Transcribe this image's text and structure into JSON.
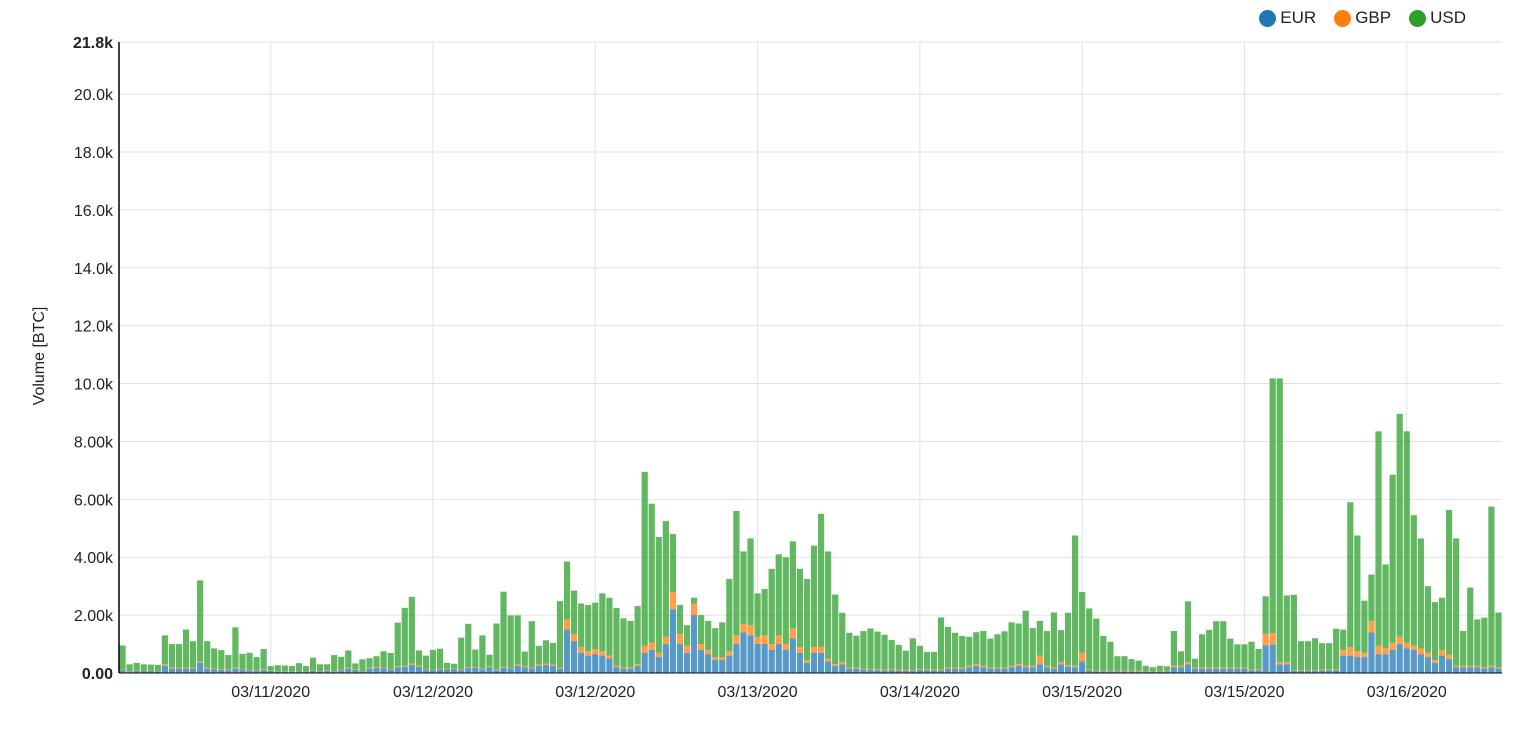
{
  "chart_data": {
    "type": "bar",
    "stacked": true,
    "ylabel": "Volume [BTC]",
    "ylim": [
      0,
      21800
    ],
    "y_ticks": [
      {
        "value": 0,
        "label": "0.00"
      },
      {
        "value": 2000,
        "label": "2.00k"
      },
      {
        "value": 4000,
        "label": "4.00k"
      },
      {
        "value": 6000,
        "label": "6.00k"
      },
      {
        "value": 8000,
        "label": "8.00k"
      },
      {
        "value": 10000,
        "label": "10.0k"
      },
      {
        "value": 12000,
        "label": "12.0k"
      },
      {
        "value": 14000,
        "label": "14.0k"
      },
      {
        "value": 16000,
        "label": "16.0k"
      },
      {
        "value": 18000,
        "label": "18.0k"
      },
      {
        "value": 20000,
        "label": "20.0k"
      },
      {
        "value": 21800,
        "label": "21.8k"
      }
    ],
    "x_ticks": [
      {
        "index": 21,
        "label": "03/11/2020"
      },
      {
        "index": 44,
        "label": "03/12/2020"
      },
      {
        "index": 67,
        "label": "03/12/2020"
      },
      {
        "index": 90,
        "label": "03/13/2020"
      },
      {
        "index": 113,
        "label": "03/14/2020"
      },
      {
        "index": 136,
        "label": "03/15/2020"
      },
      {
        "index": 159,
        "label": "03/15/2020"
      },
      {
        "index": 182,
        "label": "03/16/2020"
      }
    ],
    "grid": true,
    "legend_position": "top-right",
    "series": [
      {
        "name": "EUR",
        "color": "#1f77b4",
        "values": [
          100,
          60,
          80,
          90,
          80,
          60,
          250,
          150,
          150,
          150,
          160,
          350,
          150,
          130,
          110,
          90,
          150,
          120,
          90,
          80,
          110,
          70,
          60,
          50,
          50,
          60,
          50,
          70,
          60,
          80,
          60,
          90,
          150,
          110,
          60,
          150,
          180,
          160,
          120,
          200,
          210,
          280,
          220,
          120,
          100,
          120,
          130,
          140,
          100,
          170,
          180,
          130,
          200,
          90,
          180,
          160,
          250,
          200,
          160,
          250,
          280,
          250,
          150,
          1500,
          1100,
          700,
          600,
          650,
          600,
          500,
          200,
          150,
          160,
          250,
          700,
          800,
          550,
          1000,
          2200,
          1000,
          700,
          2000,
          800,
          650,
          450,
          450,
          600,
          1000,
          1400,
          1300,
          1000,
          1000,
          800,
          1000,
          800,
          1200,
          700,
          350,
          700,
          700,
          400,
          250,
          300,
          150,
          150,
          120,
          110,
          100,
          90,
          110,
          90,
          90,
          80,
          110,
          100,
          100,
          90,
          150,
          150,
          140,
          200,
          250,
          200,
          150,
          150,
          150,
          200,
          250,
          200,
          200,
          300,
          200,
          150,
          300,
          220,
          200,
          400,
          100,
          60,
          60,
          60,
          60,
          60,
          60,
          60,
          40,
          40,
          40,
          60,
          200,
          200,
          300,
          150,
          150,
          150,
          150,
          150,
          150,
          150,
          150,
          100,
          100,
          950,
          980,
          300,
          300,
          80,
          80,
          80,
          80,
          100,
          100,
          100,
          600,
          600,
          550,
          550,
          1400,
          650,
          650,
          800,
          1000,
          850,
          800,
          650,
          550,
          350,
          600,
          480,
          200,
          200,
          200,
          200,
          160,
          200,
          150
        ]
      },
      {
        "name": "GBP",
        "color": "#ff7f0e",
        "values": [
          20,
          10,
          10,
          10,
          10,
          10,
          50,
          30,
          30,
          30,
          30,
          50,
          30,
          20,
          20,
          20,
          30,
          20,
          20,
          20,
          20,
          20,
          10,
          10,
          10,
          10,
          10,
          10,
          10,
          20,
          10,
          20,
          30,
          20,
          10,
          30,
          30,
          30,
          20,
          40,
          40,
          50,
          40,
          20,
          20,
          20,
          20,
          20,
          20,
          30,
          30,
          20,
          30,
          20,
          30,
          30,
          40,
          40,
          30,
          40,
          50,
          40,
          30,
          350,
          250,
          200,
          150,
          180,
          150,
          100,
          50,
          40,
          40,
          60,
          250,
          250,
          150,
          250,
          600,
          350,
          250,
          400,
          200,
          150,
          100,
          100,
          150,
          300,
          300,
          350,
          250,
          300,
          200,
          300,
          200,
          350,
          200,
          100,
          200,
          200,
          100,
          60,
          80,
          40,
          40,
          30,
          30,
          30,
          30,
          30,
          30,
          30,
          20,
          30,
          30,
          30,
          30,
          40,
          40,
          40,
          50,
          60,
          50,
          40,
          40,
          40,
          50,
          60,
          50,
          50,
          300,
          50,
          40,
          80,
          60,
          50,
          300,
          30,
          20,
          20,
          20,
          20,
          20,
          20,
          20,
          10,
          10,
          10,
          20,
          50,
          50,
          80,
          40,
          40,
          40,
          40,
          40,
          40,
          40,
          40,
          30,
          30,
          400,
          400,
          80,
          80,
          20,
          20,
          20,
          20,
          30,
          30,
          30,
          200,
          300,
          200,
          150,
          400,
          300,
          200,
          250,
          250,
          200,
          150,
          200,
          150,
          100,
          200,
          150,
          50,
          50,
          50,
          50,
          50,
          50,
          40
        ]
      },
      {
        "name": "USD",
        "color": "#2ca02c",
        "values": [
          830,
          230,
          260,
          200,
          200,
          210,
          1000,
          820,
          820,
          1320,
          910,
          2800,
          920,
          700,
          660,
          510,
          1400,
          520,
          590,
          450,
          700,
          150,
          200,
          200,
          180,
          270,
          180,
          450,
          230,
          200,
          550,
          450,
          600,
          200,
          400,
          330,
          370,
          560,
          550,
          1500,
          2000,
          2300,
          520,
          460,
          680,
          700,
          200,
          160,
          1100,
          1500,
          600,
          1150,
          400,
          1600,
          2600,
          1800,
          1700,
          500,
          1600,
          650,
          800,
          750,
          2300,
          2000,
          1500,
          1500,
          1600,
          1600,
          2000,
          2000,
          2000,
          1700,
          1600,
          2000,
          6000,
          4800,
          4000,
          4000,
          2000,
          1000,
          700,
          200,
          1000,
          1000,
          1000,
          1200,
          2500,
          4300,
          2500,
          3000,
          1500,
          1600,
          2600,
          2800,
          3000,
          3000,
          2700,
          2800,
          3500,
          4600,
          3700,
          2400,
          1700,
          1200,
          1100,
          1300,
          1400,
          1300,
          1200,
          1000,
          850,
          650,
          1100,
          800,
          600,
          600,
          1800,
          1400,
          1200,
          1100,
          1000,
          1100,
          1200,
          1000,
          1150,
          1250,
          1500,
          1400,
          1900,
          1300,
          1200,
          1200,
          1900,
          1100,
          1800,
          4500,
          2100,
          2100,
          1800,
          1200,
          1000,
          500,
          500,
          400,
          350,
          200,
          150,
          200,
          150,
          1200,
          500,
          2100,
          300,
          1150,
          1300,
          1600,
          1600,
          1000,
          800,
          800,
          950,
          700,
          1300,
          8800,
          9800,
          2300,
          2600,
          1000,
          1000,
          1100,
          900,
          900,
          1400,
          700,
          5000,
          4000,
          1800,
          1600,
          7400,
          2900,
          5800,
          7700,
          7300,
          4500,
          3800,
          2300,
          2000,
          1800,
          5000,
          4400,
          1200,
          2700,
          1600,
          1700,
          5500,
          1900
        ]
      }
    ]
  },
  "legend": [
    {
      "label": "EUR",
      "color": "#1f77b4"
    },
    {
      "label": "GBP",
      "color": "#ff7f0e"
    },
    {
      "label": "USD",
      "color": "#2ca02c"
    }
  ]
}
